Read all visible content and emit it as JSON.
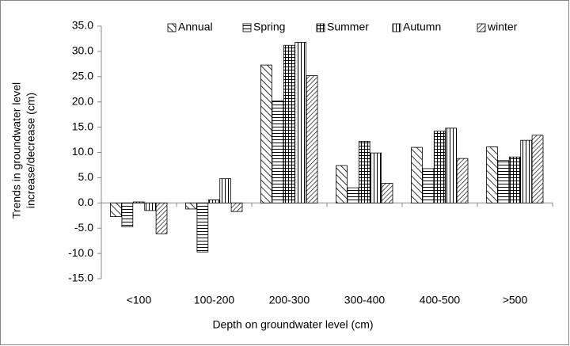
{
  "chart_data": {
    "type": "bar",
    "ylabel": [
      "Trends in  groundwater level",
      "increase/decrease (cm)"
    ],
    "xlabel": "Depth on groundwater level (cm)",
    "categories": [
      "<100",
      "100-200",
      "200-300",
      "300-400",
      "400-500",
      ">500"
    ],
    "series": [
      {
        "name": "Annual",
        "color": "#000000",
        "pattern": "wide-backward-diagonal",
        "values": [
          -2.7,
          -1.2,
          27.3,
          7.4,
          11.0,
          11.1
        ]
      },
      {
        "name": "Spring",
        "color": "#000000",
        "pattern": "horizontal",
        "values": [
          -4.7,
          -9.7,
          20.2,
          3.0,
          6.8,
          8.4
        ]
      },
      {
        "name": "Summer",
        "color": "#000000",
        "pattern": "grid",
        "values": [
          0.2,
          0.6,
          31.2,
          12.2,
          14.2,
          9.1
        ]
      },
      {
        "name": "Autumn",
        "color": "#000000",
        "pattern": "vertical",
        "values": [
          -1.5,
          4.8,
          31.8,
          9.9,
          14.8,
          12.4
        ]
      },
      {
        "name": "winter",
        "color": "#000000",
        "pattern": "forward-diagonal",
        "values": [
          -6.1,
          -1.7,
          25.2,
          3.9,
          8.8,
          13.4
        ]
      }
    ],
    "ylim": [
      -15,
      35
    ],
    "yticks": [
      {
        "value": -15,
        "label": "-15.0"
      },
      {
        "value": -10,
        "label": "-10.0"
      },
      {
        "value": -5,
        "label": "-5.0"
      },
      {
        "value": 0,
        "label": "0.0"
      },
      {
        "value": 5,
        "label": "5.0"
      },
      {
        "value": 10,
        "label": "10.0"
      },
      {
        "value": 15,
        "label": "15.0"
      },
      {
        "value": 20,
        "label": "20.0"
      },
      {
        "value": 25,
        "label": "25.0"
      },
      {
        "value": 30,
        "label": "30.0"
      },
      {
        "value": 35,
        "label": "35.0"
      }
    ],
    "grid": false,
    "legend": "top"
  }
}
